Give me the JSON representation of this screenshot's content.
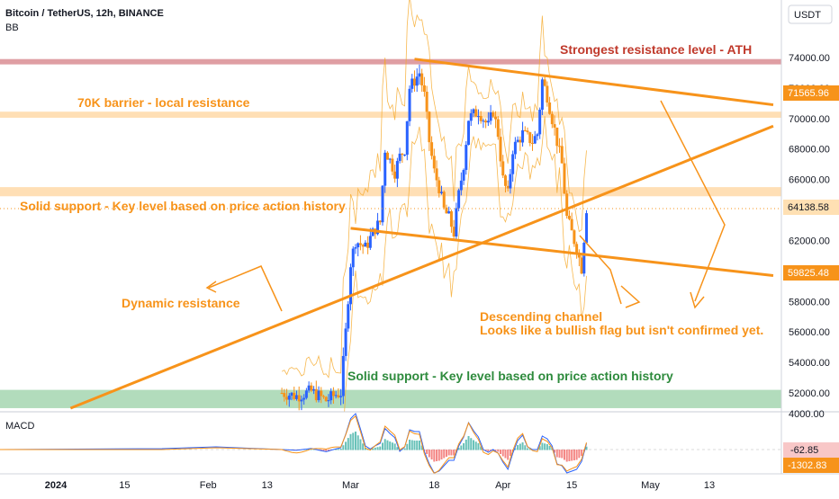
{
  "header": {
    "symbol_line": "Bitcoin / TetherUS, 12h, BINANCE",
    "indicator": "BB",
    "currency_button": "USDT",
    "macd_label": "MACD"
  },
  "colors": {
    "orange": "#f7931a",
    "line_orange": "#f5a623",
    "red_band": "#d98d93",
    "peach_band": "#ffd9a8",
    "green_band": "#a5d6b0",
    "bull": "#2962ff",
    "bear": "#f7931a",
    "green_text": "#2e8b3d",
    "red_text": "#c0392b"
  },
  "annotations": {
    "ath": "Strongest resistance level - ATH",
    "barrier": "70K barrier - local resistance",
    "support_top": "Solid support - Key level based on price action history",
    "dynamic": "Dynamic resistance",
    "channel_line1": "Descending channel",
    "channel_line2": "Looks like a bullish flag but isn't confirmed yet.",
    "support_bottom": "Solid support - Key level based on price action history"
  },
  "price_tags": {
    "upper": "71565.96",
    "current": "64138.58",
    "lower": "59825.48",
    "macd_a": "-62.85",
    "macd_b": "-1302.83"
  },
  "chart_data": {
    "type": "candlestick",
    "title": "Bitcoin / TetherUS, 12h, BINANCE",
    "ylabel": "USDT",
    "ylim": [
      51000,
      75500
    ],
    "y_ticks": [
      52000,
      54000,
      56000,
      58000,
      60000,
      62000,
      64000,
      66000,
      68000,
      70000,
      72000,
      74000
    ],
    "y_tick_labels": [
      "52000.00",
      "54000.00",
      "56000.00",
      "58000.00",
      "60000.00",
      "62000.00",
      "64000.00",
      "66000.00",
      "68000.00",
      "70000.00",
      "72000.00",
      "74000.00"
    ],
    "macd_top_label": "4000.00",
    "x_tick_labels": [
      "2024",
      "15",
      "Feb",
      "13",
      "Mar",
      "18",
      "Apr",
      "15",
      "May",
      "13"
    ],
    "x_tick_days": [
      0,
      14,
      31,
      43,
      60,
      77,
      91,
      105,
      121,
      133
    ],
    "horizontal_zones": [
      {
        "name": "ATH resistance",
        "from": 73550,
        "to": 73900
      },
      {
        "name": "70K barrier",
        "from": 70050,
        "to": 70450
      },
      {
        "name": "key support",
        "from": 64900,
        "to": 65500
      },
      {
        "name": "bottom support",
        "from": 51000,
        "to": 52200
      }
    ],
    "price_key_points": [
      {
        "day": 46,
        "price": 52000
      },
      {
        "day": 49,
        "price": 51800
      },
      {
        "day": 52,
        "price": 52100
      },
      {
        "day": 55,
        "price": 51500
      },
      {
        "day": 57,
        "price": 51900
      },
      {
        "day": 58,
        "price": 52000
      },
      {
        "day": 59,
        "price": 56000
      },
      {
        "day": 60,
        "price": 60500
      },
      {
        "day": 61,
        "price": 62000
      },
      {
        "day": 63,
        "price": 61500
      },
      {
        "day": 65,
        "price": 62800
      },
      {
        "day": 66,
        "price": 63200
      },
      {
        "day": 67,
        "price": 68000
      },
      {
        "day": 69,
        "price": 66500
      },
      {
        "day": 70,
        "price": 67500
      },
      {
        "day": 71,
        "price": 68000
      },
      {
        "day": 72,
        "price": 72000
      },
      {
        "day": 74,
        "price": 73000
      },
      {
        "day": 75,
        "price": 71500
      },
      {
        "day": 76,
        "price": 68500
      },
      {
        "day": 77,
        "price": 66500
      },
      {
        "day": 78,
        "price": 65500
      },
      {
        "day": 79,
        "price": 64000
      },
      {
        "day": 80,
        "price": 63500
      },
      {
        "day": 81,
        "price": 62500
      },
      {
        "day": 82,
        "price": 65000
      },
      {
        "day": 83,
        "price": 67000
      },
      {
        "day": 84,
        "price": 70000
      },
      {
        "day": 86,
        "price": 70500
      },
      {
        "day": 88,
        "price": 69500
      },
      {
        "day": 89,
        "price": 70500
      },
      {
        "day": 90,
        "price": 69000
      },
      {
        "day": 91,
        "price": 66000
      },
      {
        "day": 92,
        "price": 65000
      },
      {
        "day": 93,
        "price": 68000
      },
      {
        "day": 95,
        "price": 69000
      },
      {
        "day": 97,
        "price": 68500
      },
      {
        "day": 98,
        "price": 69000
      },
      {
        "day": 99,
        "price": 72500
      },
      {
        "day": 100,
        "price": 71500
      },
      {
        "day": 101,
        "price": 70000
      },
      {
        "day": 102,
        "price": 68500
      },
      {
        "day": 103,
        "price": 67000
      },
      {
        "day": 104,
        "price": 63500
      },
      {
        "day": 105,
        "price": 62500
      },
      {
        "day": 106,
        "price": 61500
      },
      {
        "day": 107,
        "price": 60200
      },
      {
        "day": 108,
        "price": 64138.58
      }
    ],
    "trendlines": [
      {
        "name": "descending channel top",
        "from": {
          "day": 73,
          "price": 73900
        },
        "to": {
          "day": 146,
          "price": 70900
        }
      },
      {
        "name": "descending channel bottom",
        "from": {
          "day": 60,
          "price": 62800
        },
        "to": {
          "day": 146,
          "price": 59700
        }
      },
      {
        "name": "dynamic resistance",
        "from": {
          "day": 3,
          "price": 51000
        },
        "to": {
          "day": 146,
          "price": 69500
        }
      }
    ],
    "macd": {
      "zero_line": true,
      "values_end": [
        -62.85,
        -1302.83
      ]
    }
  }
}
